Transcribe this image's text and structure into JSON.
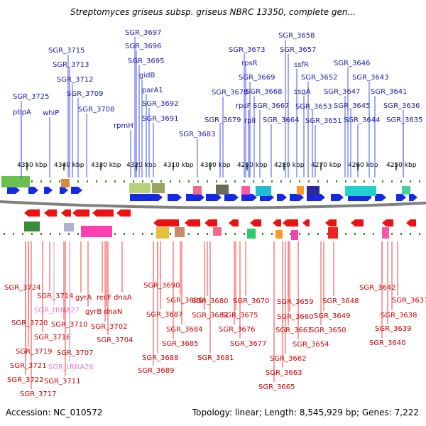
{
  "title": "Streptomyces griseus subsp. griseus NBRC 13350, complete gen...",
  "accession": "Accession: NC_010572",
  "topology": "Topology: linear; Length: 8,545,929 bp; Genes: 7,222",
  "colors": {
    "top_label": "#1a1aaa",
    "bottom_label": "#cc0000",
    "rna_label": "#e77ec8",
    "forward_arrow": "#1428e6",
    "reverse_arrow": "#ee1111",
    "dots": "#2e8b22",
    "backbone": "#808080"
  },
  "scale_labels": [
    "4350 kbp",
    "4340 kbp",
    "4330 kbp",
    "4320 kbp",
    "4310 kbp",
    "4300 kbp",
    "4290 kbp",
    "4280 kbp",
    "4270 kbp",
    "4260 kbp",
    "4250 kbp"
  ],
  "top_genes": [
    "SGR_3725",
    "pbpA",
    "whiP",
    "SGR_3715",
    "SGR_3713",
    "SGR_3712",
    "SGR_3709",
    "SGR_3708",
    "SGR_3697",
    "SGR_3696",
    "SGR_3695",
    "gidB",
    "parA1",
    "SGR_3692",
    "SGR_3691",
    "rpmH",
    "SGR_3683",
    "SGR_3679",
    "SGR_3678",
    "SGR_3673",
    "rpsR",
    "SGR_3669",
    "SGR_3668",
    "rpsF",
    "rplI",
    "SGR_3667",
    "SGR_3664",
    "SGR_3658",
    "SGR_3657",
    "ssfR",
    "ssgA",
    "SGR_3652",
    "SGR_3653",
    "SGR_3651",
    "SGR_3646",
    "SGR_3647",
    "SGR_3645",
    "SGR_3644",
    "SGR_3643",
    "SGR_3641",
    "SGR_3636",
    "SGR_3635"
  ],
  "bottom_genes": [
    "SGR_3724",
    "SGR_3714",
    "SGR_tRNA27",
    "SGR_3720",
    "SGR_3716",
    "SGR_3719",
    "SGR_3721",
    "SGR_3722",
    "SGR_3717",
    "SGR_3710",
    "SGR_3707",
    "SGR_tRNA26",
    "SGR_3711",
    "gyrA",
    "gyrB",
    "recF",
    "dnaN",
    "dnaA",
    "SGR_3702",
    "SGR_3704",
    "SGR_3690",
    "SGR_3686",
    "SGR_3687",
    "SGR_3688",
    "SGR_3689",
    "SGR_3685",
    "SGR_3684",
    "SGR_3682",
    "SGR_3680",
    "SGR_3681",
    "SGR_3675",
    "SGR_3676",
    "SGR_3677",
    "SGR_3670",
    "SGR_3659",
    "SGR_3660",
    "SGR_3661",
    "SGR_3662",
    "SGR_3663",
    "SGR_3665",
    "SGR_3654",
    "SGR_3648",
    "SGR_3649",
    "SGR_3650",
    "SGR_3642",
    "SGR_3637",
    "SGR_3638",
    "SGR_3639",
    "SGR_3640"
  ]
}
